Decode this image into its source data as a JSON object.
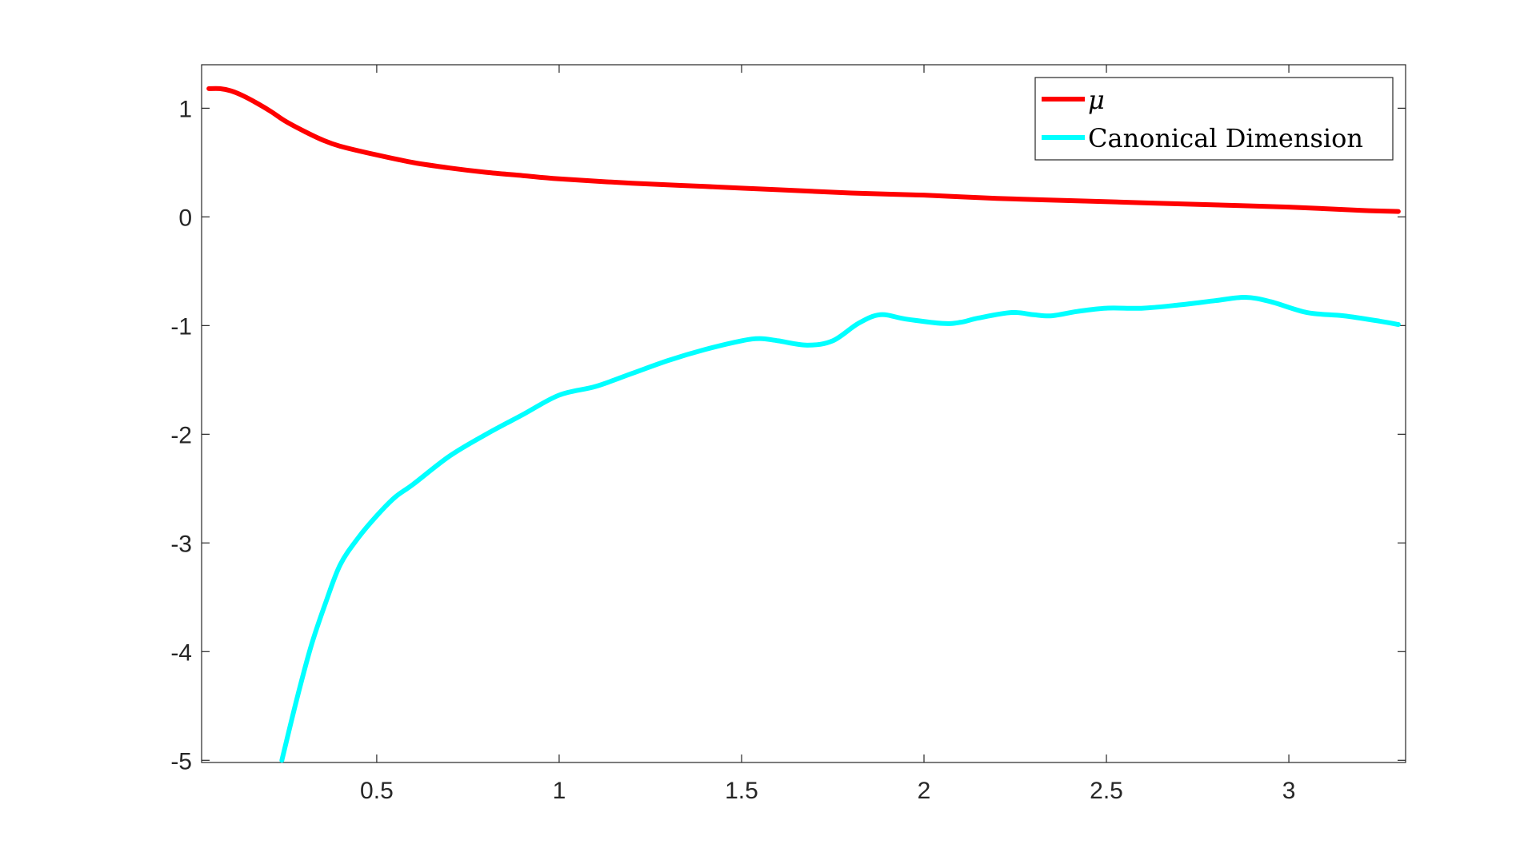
{
  "chart_data": {
    "type": "line",
    "title": "",
    "xlabel": "",
    "ylabel": "",
    "xlim": [
      0.02,
      3.32
    ],
    "ylim": [
      -5.02,
      1.4
    ],
    "xticks": [
      0.5,
      1,
      1.5,
      2,
      2.5,
      3
    ],
    "xtick_labels": [
      "0.5",
      "1",
      "1.5",
      "2",
      "2.5",
      "3"
    ],
    "yticks": [
      1,
      0,
      -1,
      -2,
      -3,
      -4,
      -5
    ],
    "ytick_labels": [
      "1",
      "0",
      "-1",
      "-2",
      "-3",
      "-4",
      "-5"
    ],
    "grid": false,
    "legend_position": "top-right",
    "series": [
      {
        "name": "μ",
        "color": "#ff0000",
        "x": [
          0.04,
          0.07,
          0.1,
          0.13,
          0.17,
          0.21,
          0.25,
          0.3,
          0.35,
          0.4,
          0.5,
          0.6,
          0.7,
          0.8,
          0.9,
          1.0,
          1.2,
          1.4,
          1.6,
          1.8,
          2.0,
          2.2,
          2.4,
          2.6,
          2.8,
          3.0,
          3.2,
          3.3
        ],
        "y": [
          1.18,
          1.18,
          1.16,
          1.12,
          1.05,
          0.97,
          0.88,
          0.79,
          0.71,
          0.65,
          0.57,
          0.5,
          0.45,
          0.41,
          0.38,
          0.35,
          0.31,
          0.28,
          0.25,
          0.22,
          0.2,
          0.17,
          0.15,
          0.13,
          0.11,
          0.09,
          0.06,
          0.05
        ]
      },
      {
        "name": "Canonical Dimension",
        "color": "#00ffff",
        "x": [
          0.24,
          0.28,
          0.32,
          0.36,
          0.4,
          0.45,
          0.5,
          0.55,
          0.6,
          0.7,
          0.8,
          0.9,
          1.0,
          1.1,
          1.2,
          1.3,
          1.4,
          1.5,
          1.55,
          1.6,
          1.68,
          1.75,
          1.82,
          1.88,
          1.95,
          2.05,
          2.1,
          2.15,
          2.24,
          2.3,
          2.35,
          2.42,
          2.5,
          2.6,
          2.7,
          2.8,
          2.88,
          2.95,
          3.05,
          3.15,
          3.25,
          3.3
        ],
        "y": [
          -5.0,
          -4.45,
          -3.95,
          -3.55,
          -3.2,
          -2.95,
          -2.75,
          -2.58,
          -2.46,
          -2.2,
          -2.0,
          -1.82,
          -1.64,
          -1.56,
          -1.44,
          -1.32,
          -1.22,
          -1.14,
          -1.12,
          -1.14,
          -1.18,
          -1.14,
          -0.98,
          -0.9,
          -0.94,
          -0.98,
          -0.97,
          -0.93,
          -0.88,
          -0.9,
          -0.91,
          -0.87,
          -0.84,
          -0.84,
          -0.81,
          -0.77,
          -0.74,
          -0.78,
          -0.88,
          -0.91,
          -0.96,
          -0.99
        ]
      }
    ]
  }
}
